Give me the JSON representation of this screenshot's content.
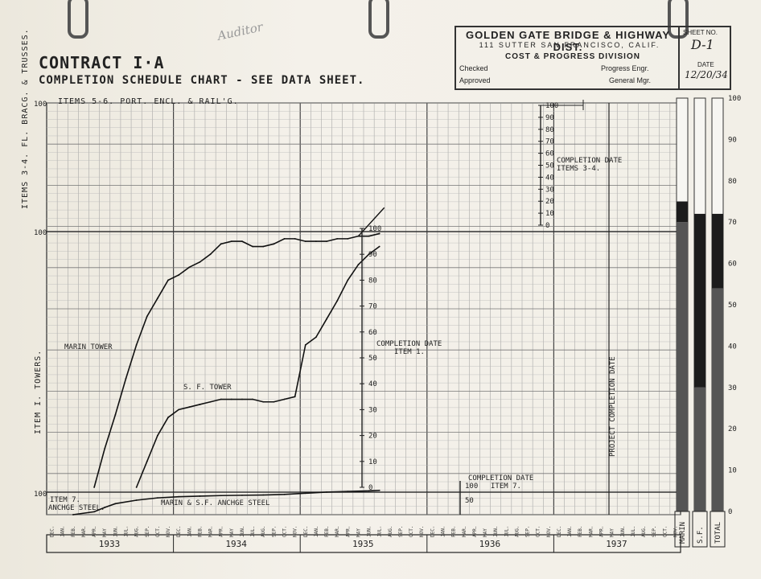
{
  "header": {
    "contract": "CONTRACT I·A",
    "subtitle": "COMPLETION SCHEDULE CHART - SEE DATA SHEET.",
    "pencil_note": "Auditor"
  },
  "stamp": {
    "org": "GOLDEN GATE BRIDGE & HIGHWAY DIST.",
    "address": "111 SUTTER      SAN FRANCISCO, CALIF.",
    "division": "COST & PROGRESS DIVISION",
    "checked": "Checked",
    "approved": "Approved",
    "progress_engr": "Progress Engr.",
    "general_mgr": "General Mgr.",
    "sheet_no_label": "SHEET NO.",
    "sheet_no": "D-1",
    "date_label": "DATE",
    "date": "12/20/34"
  },
  "annotations": {
    "items56": "ITEMS 5-6. PORT. ENCL. & RAIL'G.",
    "items34_axis": "ITEMS 3-4. FL. BRACG. & TRUSSES.",
    "item1_axis": "ITEM I.   TOWERS.",
    "marin_tower": "MARIN TOWER",
    "sf_tower": "S. F. TOWER",
    "item7": "ITEM 7.",
    "anchge": "ANCHGE STEEL.",
    "anchor_steel": "MARIN & S.F. ANCHGE STEEL",
    "comp_34_a": "COMPLETION DATE",
    "comp_34_b": "ITEMS 3-4.",
    "comp_1_a": "COMPLETION DATE",
    "comp_1_b": "ITEM 1.",
    "comp_7_a": "COMPLETION DATE",
    "comp_7_b": "ITEM 7.",
    "project_completion": "PROJECT COMPLETION DATE"
  },
  "chart_data": [
    {
      "type": "line",
      "title": "COMPLETION SCHEDULE CHART",
      "x_axis": {
        "years": [
          "1933",
          "1934",
          "1935",
          "1936",
          "1937"
        ],
        "months": [
          "DEC.",
          "JAN.",
          "FEB.",
          "MAR.",
          "APR.",
          "MAY",
          "JUN.",
          "JUL.",
          "AUG.",
          "SEP.",
          "OCT.",
          "NOV.",
          "DEC.",
          "JAN.",
          "FEB.",
          "MAR.",
          "APR.",
          "MAY",
          "JUN.",
          "JUL.",
          "AUG.",
          "SEP.",
          "OCT.",
          "NOV.",
          "DEC.",
          "JAN.",
          "FEB.",
          "MAR.",
          "APR.",
          "MAY",
          "JUN.",
          "JUL.",
          "AUG.",
          "SEP.",
          "OCT.",
          "NOV.",
          "DEC.",
          "JAN.",
          "FEB.",
          "MAR.",
          "APR.",
          "MAY",
          "JUN.",
          "JUL.",
          "AUG.",
          "SEP.",
          "OCT.",
          "NOV.",
          "DEC.",
          "JAN.",
          "FEB.",
          "MAR.",
          "APR.",
          "MAY",
          "JUN.",
          "JUL.",
          "AUG.",
          "SEP.",
          "OCT.",
          "NOV."
        ]
      },
      "scale_ticks": [
        0,
        10,
        20,
        30,
        40,
        50,
        60,
        70,
        80,
        90,
        100
      ],
      "small_scale_ticks": [
        0,
        10,
        20,
        30,
        40,
        50,
        60,
        70,
        80,
        90,
        100
      ],
      "item7_ticks": [
        50,
        100
      ],
      "series": [
        {
          "name": "MARIN TOWER",
          "x": [
            4,
            5,
            6,
            7,
            8,
            9,
            10,
            11,
            12,
            13,
            14,
            15,
            16,
            17,
            18,
            19,
            20,
            21,
            22,
            23,
            24,
            25,
            26,
            27,
            28,
            29,
            30,
            31
          ],
          "y": [
            0,
            15,
            28,
            42,
            55,
            66,
            73,
            80,
            82,
            85,
            87,
            90,
            94,
            95,
            95,
            93,
            93,
            94,
            96,
            96,
            95,
            95,
            95,
            96,
            96,
            97,
            97,
            98
          ]
        },
        {
          "name": "S. F. TOWER",
          "x": [
            8,
            9,
            10,
            11,
            12,
            13,
            14,
            15,
            16,
            17,
            18,
            19,
            20,
            21,
            22,
            23,
            24,
            25,
            26,
            27,
            28,
            29,
            30,
            31
          ],
          "y": [
            0,
            10,
            20,
            27,
            30,
            31,
            32,
            33,
            34,
            34,
            34,
            34,
            33,
            33,
            34,
            35,
            55,
            58,
            65,
            72,
            80,
            86,
            90,
            93
          ]
        },
        {
          "name": "MARIN & S.F. ANCHGE STEEL",
          "x": [
            2,
            4,
            5,
            6,
            8,
            10,
            12,
            14,
            16,
            18,
            20,
            22,
            24,
            26,
            28,
            30,
            31
          ],
          "y": [
            0,
            10,
            25,
            38,
            50,
            58,
            62,
            64,
            66,
            67,
            68,
            70,
            74,
            78,
            80,
            82,
            84
          ]
        }
      ],
      "legend_bars": {
        "labels": [
          "MARIN",
          "S.F.",
          "TOTAL"
        ],
        "axis_ticks": [
          0,
          10,
          20,
          30,
          40,
          50,
          60,
          70,
          80,
          90,
          100
        ],
        "marin": [
          70,
          75,
          100
        ],
        "sf": [
          30,
          72,
          100
        ],
        "total": [
          54,
          72,
          100
        ]
      }
    }
  ]
}
